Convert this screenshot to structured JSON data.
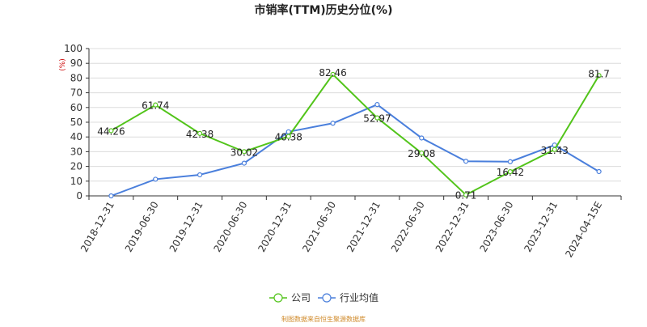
{
  "chart_data": {
    "type": "line",
    "title": "市销率(TTM)历史分位(%)",
    "ylabel_unit": "(%)",
    "ylim": [
      0,
      100
    ],
    "yticks": [
      0,
      10,
      20,
      30,
      40,
      50,
      60,
      70,
      80,
      90,
      100
    ],
    "categories": [
      "2018-12-31",
      "2019-06-30",
      "2019-12-31",
      "2020-06-30",
      "2020-12-31",
      "2021-06-30",
      "2021-12-31",
      "2022-06-30",
      "2022-12-31",
      "2023-06-30",
      "2023-12-31",
      "2024-04-15E"
    ],
    "series": [
      {
        "name": "公司",
        "color": "#52c41a",
        "values": [
          44.26,
          61.74,
          42.38,
          30.02,
          40.38,
          82.46,
          52.97,
          29.08,
          0.71,
          16.42,
          31.43,
          81.7
        ],
        "labels": [
          "44.26",
          "61.74",
          "42.38",
          "30.02",
          "40.38",
          "82.46",
          "52.97",
          "29.08",
          "0.71",
          "16.42",
          "31.43",
          "81.7"
        ]
      },
      {
        "name": "行业均值",
        "color": "#4a7fdc",
        "values": [
          0,
          11.3,
          14.3,
          22.2,
          43.5,
          49.3,
          62,
          39.3,
          23.5,
          23.2,
          34.5,
          16.5
        ]
      }
    ],
    "grid": true,
    "legend_position": "bottom-center",
    "source": "制图数据来自恒生聚源数据库"
  }
}
